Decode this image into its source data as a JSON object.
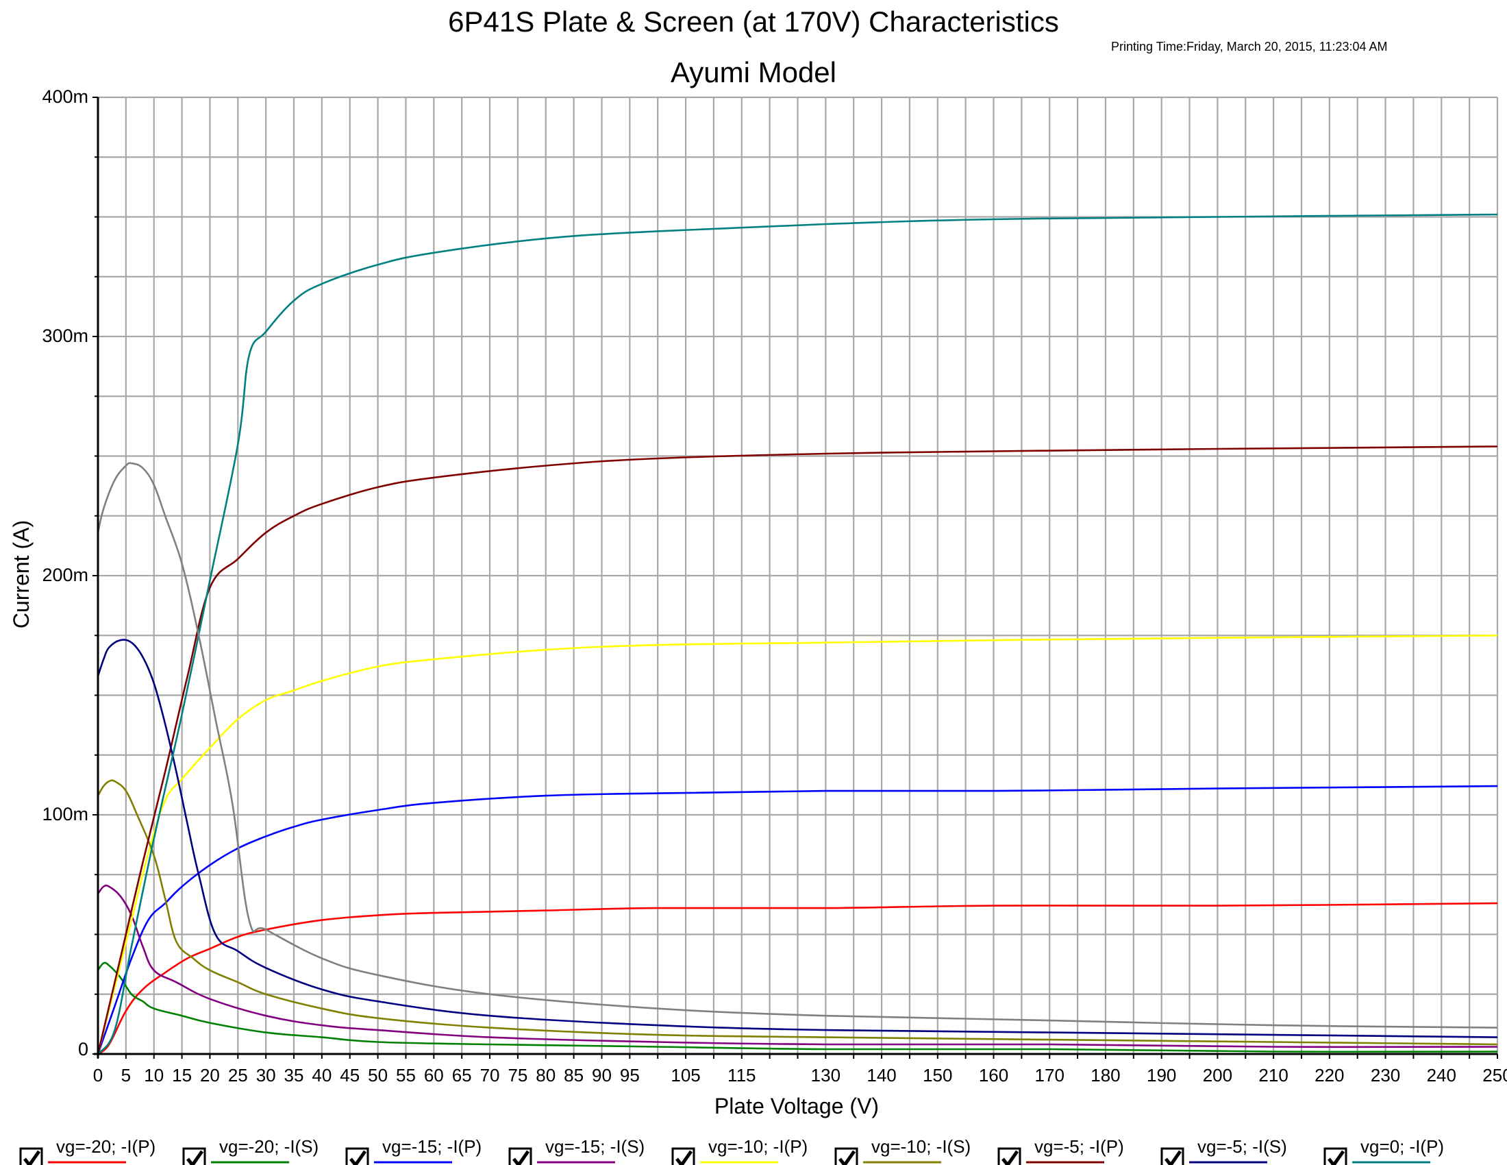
{
  "printing_time": "Printing Time:Friday, March 20, 2015, 11:23:04 AM",
  "chart_data": {
    "type": "line",
    "title": "6P41S Plate & Screen (at 170V)  Characteristics",
    "subtitle": "Ayumi Model",
    "xlabel": "Plate Voltage (V)",
    "ylabel": "Current (A)",
    "xlim": [
      0,
      250
    ],
    "ylim": [
      0,
      0.4
    ],
    "grid": true,
    "x_ticks": [
      0,
      5,
      10,
      15,
      20,
      25,
      30,
      35,
      40,
      45,
      50,
      55,
      60,
      65,
      70,
      75,
      80,
      85,
      90,
      95,
      105,
      115,
      130,
      140,
      150,
      160,
      170,
      180,
      190,
      200,
      210,
      220,
      230,
      240,
      250
    ],
    "y_ticks": [
      {
        "value": 0,
        "label": "0"
      },
      {
        "value": 0.1,
        "label": "100m"
      },
      {
        "value": 0.2,
        "label": "200m"
      },
      {
        "value": 0.3,
        "label": "300m"
      },
      {
        "value": 0.4,
        "label": "400m"
      }
    ],
    "series": [
      {
        "name": "vg=-20; -I(P)",
        "color": "#ff0000",
        "checked": true,
        "points": [
          [
            0,
            0
          ],
          [
            2,
            0.004
          ],
          [
            5,
            0.018
          ],
          [
            8,
            0.027
          ],
          [
            12,
            0.034
          ],
          [
            16,
            0.04
          ],
          [
            20,
            0.044
          ],
          [
            25,
            0.049
          ],
          [
            30,
            0.052
          ],
          [
            40,
            0.056
          ],
          [
            50,
            0.058
          ],
          [
            60,
            0.059
          ],
          [
            80,
            0.06
          ],
          [
            100,
            0.061
          ],
          [
            130,
            0.061
          ],
          [
            160,
            0.062
          ],
          [
            200,
            0.062
          ],
          [
            250,
            0.063
          ]
        ]
      },
      {
        "name": "vg=-20; -I(S)",
        "color": "#008000",
        "checked": true,
        "points": [
          [
            0,
            0.035
          ],
          [
            1,
            0.038
          ],
          [
            2,
            0.037
          ],
          [
            4,
            0.032
          ],
          [
            6,
            0.025
          ],
          [
            8,
            0.022
          ],
          [
            10,
            0.019
          ],
          [
            15,
            0.016
          ],
          [
            20,
            0.013
          ],
          [
            30,
            0.009
          ],
          [
            40,
            0.007
          ],
          [
            50,
            0.005
          ],
          [
            70,
            0.004
          ],
          [
            100,
            0.003
          ],
          [
            130,
            0.002
          ],
          [
            170,
            0.002
          ],
          [
            210,
            0.001
          ],
          [
            250,
            0.001
          ]
        ]
      },
      {
        "name": "vg=-15; -I(P)",
        "color": "#0000ff",
        "checked": true,
        "points": [
          [
            0,
            0
          ],
          [
            3,
            0.02
          ],
          [
            6,
            0.04
          ],
          [
            9,
            0.056
          ],
          [
            12,
            0.063
          ],
          [
            15,
            0.07
          ],
          [
            20,
            0.079
          ],
          [
            25,
            0.086
          ],
          [
            30,
            0.091
          ],
          [
            35,
            0.095
          ],
          [
            40,
            0.098
          ],
          [
            50,
            0.102
          ],
          [
            60,
            0.105
          ],
          [
            80,
            0.108
          ],
          [
            100,
            0.109
          ],
          [
            130,
            0.11
          ],
          [
            160,
            0.11
          ],
          [
            200,
            0.111
          ],
          [
            250,
            0.112
          ]
        ]
      },
      {
        "name": "vg=-15; -I(S)",
        "color": "#800080",
        "checked": true,
        "points": [
          [
            0,
            0.067
          ],
          [
            1,
            0.07
          ],
          [
            2,
            0.07
          ],
          [
            4,
            0.066
          ],
          [
            6,
            0.058
          ],
          [
            8,
            0.045
          ],
          [
            10,
            0.035
          ],
          [
            14,
            0.03
          ],
          [
            20,
            0.023
          ],
          [
            30,
            0.016
          ],
          [
            40,
            0.012
          ],
          [
            50,
            0.01
          ],
          [
            70,
            0.007
          ],
          [
            100,
            0.005
          ],
          [
            130,
            0.004
          ],
          [
            170,
            0.004
          ],
          [
            210,
            0.003
          ],
          [
            250,
            0.003
          ]
        ]
      },
      {
        "name": "vg=-10; -I(P)",
        "color": "#ffff00",
        "checked": true,
        "points": [
          [
            0,
            0
          ],
          [
            3,
            0.028
          ],
          [
            6,
            0.056
          ],
          [
            9,
            0.084
          ],
          [
            12,
            0.106
          ],
          [
            15,
            0.115
          ],
          [
            20,
            0.128
          ],
          [
            25,
            0.14
          ],
          [
            30,
            0.148
          ],
          [
            35,
            0.152
          ],
          [
            40,
            0.156
          ],
          [
            50,
            0.162
          ],
          [
            60,
            0.165
          ],
          [
            80,
            0.169
          ],
          [
            100,
            0.171
          ],
          [
            130,
            0.172
          ],
          [
            160,
            0.173
          ],
          [
            200,
            0.174
          ],
          [
            250,
            0.175
          ]
        ]
      },
      {
        "name": "vg=-10; -I(S)",
        "color": "#808000",
        "checked": true,
        "points": [
          [
            0,
            0.108
          ],
          [
            1,
            0.112
          ],
          [
            2,
            0.114
          ],
          [
            3,
            0.114
          ],
          [
            5,
            0.11
          ],
          [
            7,
            0.1
          ],
          [
            10,
            0.083
          ],
          [
            12,
            0.065
          ],
          [
            14,
            0.047
          ],
          [
            17,
            0.04
          ],
          [
            20,
            0.035
          ],
          [
            25,
            0.03
          ],
          [
            30,
            0.025
          ],
          [
            40,
            0.019
          ],
          [
            50,
            0.015
          ],
          [
            70,
            0.011
          ],
          [
            100,
            0.008
          ],
          [
            130,
            0.007
          ],
          [
            170,
            0.006
          ],
          [
            210,
            0.005
          ],
          [
            250,
            0.004
          ]
        ]
      },
      {
        "name": "vg=-5; -I(P)",
        "color": "#800000",
        "checked": true,
        "points": [
          [
            0,
            0
          ],
          [
            4,
            0.04
          ],
          [
            8,
            0.08
          ],
          [
            12,
            0.118
          ],
          [
            16,
            0.158
          ],
          [
            20,
            0.195
          ],
          [
            25,
            0.207
          ],
          [
            30,
            0.218
          ],
          [
            35,
            0.225
          ],
          [
            40,
            0.23
          ],
          [
            50,
            0.237
          ],
          [
            60,
            0.241
          ],
          [
            80,
            0.246
          ],
          [
            100,
            0.249
          ],
          [
            130,
            0.251
          ],
          [
            160,
            0.252
          ],
          [
            200,
            0.253
          ],
          [
            250,
            0.254
          ]
        ]
      },
      {
        "name": "vg=-5; -I(S)",
        "color": "#000080",
        "checked": true,
        "points": [
          [
            0,
            0.158
          ],
          [
            1,
            0.165
          ],
          [
            2,
            0.17
          ],
          [
            4,
            0.173
          ],
          [
            6,
            0.172
          ],
          [
            8,
            0.166
          ],
          [
            10,
            0.155
          ],
          [
            12,
            0.138
          ],
          [
            14,
            0.118
          ],
          [
            16,
            0.096
          ],
          [
            18,
            0.075
          ],
          [
            21,
            0.05
          ],
          [
            25,
            0.043
          ],
          [
            30,
            0.036
          ],
          [
            40,
            0.027
          ],
          [
            50,
            0.022
          ],
          [
            70,
            0.016
          ],
          [
            100,
            0.012
          ],
          [
            130,
            0.01
          ],
          [
            170,
            0.009
          ],
          [
            210,
            0.008
          ],
          [
            250,
            0.007
          ]
        ]
      },
      {
        "name": "vg=0; -I(P)",
        "color": "#008080",
        "checked": true,
        "points": [
          [
            0,
            0
          ],
          [
            3,
            0.01
          ],
          [
            6,
            0.045
          ],
          [
            10,
            0.09
          ],
          [
            15,
            0.142
          ],
          [
            20,
            0.198
          ],
          [
            25,
            0.255
          ],
          [
            27,
            0.292
          ],
          [
            30,
            0.302
          ],
          [
            35,
            0.315
          ],
          [
            40,
            0.322
          ],
          [
            50,
            0.33
          ],
          [
            60,
            0.335
          ],
          [
            80,
            0.341
          ],
          [
            100,
            0.344
          ],
          [
            130,
            0.347
          ],
          [
            160,
            0.349
          ],
          [
            200,
            0.35
          ],
          [
            250,
            0.351
          ]
        ]
      },
      {
        "name": "",
        "color": "#808080",
        "checked": null,
        "points": [
          [
            0,
            0.218
          ],
          [
            1,
            0.228
          ],
          [
            3,
            0.24
          ],
          [
            5,
            0.246
          ],
          [
            6,
            0.247
          ],
          [
            8,
            0.245
          ],
          [
            10,
            0.238
          ],
          [
            12,
            0.225
          ],
          [
            15,
            0.205
          ],
          [
            18,
            0.175
          ],
          [
            21,
            0.14
          ],
          [
            24,
            0.105
          ],
          [
            27,
            0.056
          ],
          [
            30,
            0.052
          ],
          [
            40,
            0.04
          ],
          [
            50,
            0.033
          ],
          [
            70,
            0.025
          ],
          [
            100,
            0.019
          ],
          [
            130,
            0.016
          ],
          [
            170,
            0.014
          ],
          [
            210,
            0.012
          ],
          [
            250,
            0.011
          ]
        ]
      }
    ]
  }
}
